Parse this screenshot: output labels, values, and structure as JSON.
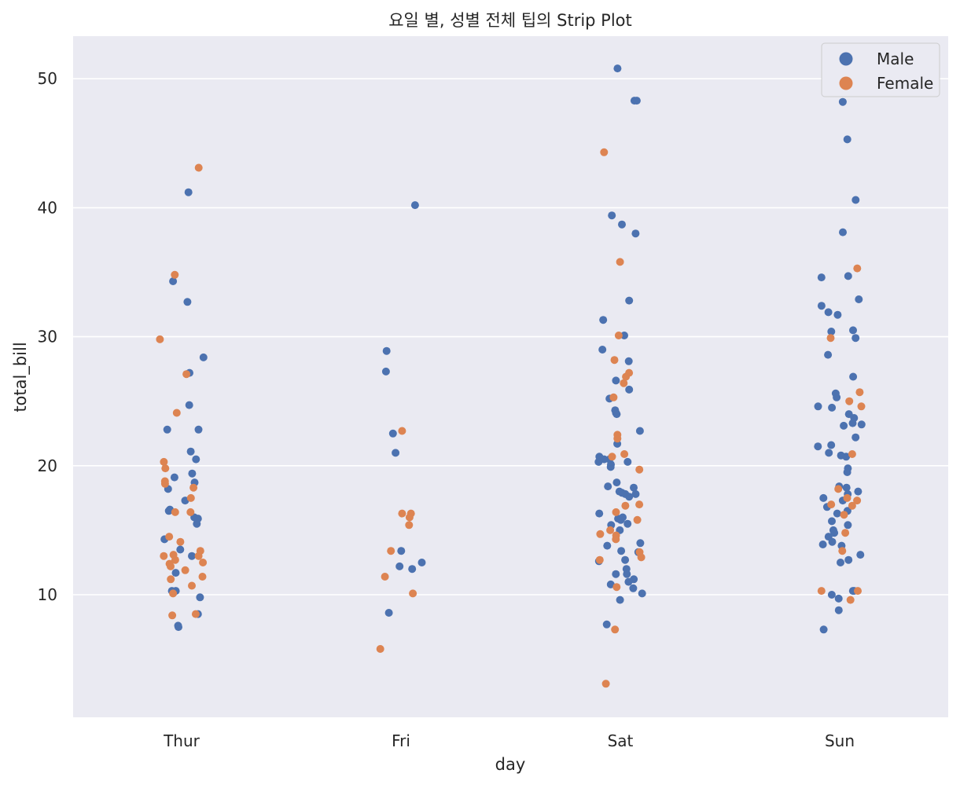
{
  "chart_data": {
    "type": "scatter",
    "title": "요일 별, 성별 전체 팁의 Strip Plot",
    "xlabel": "day",
    "ylabel": "total_bill",
    "categories": [
      "Thur",
      "Fri",
      "Sat",
      "Sun"
    ],
    "ylim": [
      0.5,
      53.3
    ],
    "yticks": [
      "10",
      "20",
      "30",
      "40",
      "50"
    ],
    "grid": true,
    "legend_position": "top-right",
    "colors": {
      "background": "#eaeaf2",
      "grid": "#ffffff",
      "male": "#4c72b0",
      "female": "#dd8452"
    },
    "series": [
      {
        "name": "Male",
        "points": [
          [
            "Thur",
            41.2
          ],
          [
            "Thur",
            34.3
          ],
          [
            "Thur",
            32.7
          ],
          [
            "Thur",
            28.4
          ],
          [
            "Thur",
            27.2
          ],
          [
            "Thur",
            24.7
          ],
          [
            "Thur",
            22.8
          ],
          [
            "Thur",
            22.8
          ],
          [
            "Thur",
            21.1
          ],
          [
            "Thur",
            20.5
          ],
          [
            "Thur",
            19.4
          ],
          [
            "Thur",
            19.1
          ],
          [
            "Thur",
            18.7
          ],
          [
            "Thur",
            18.2
          ],
          [
            "Thur",
            17.3
          ],
          [
            "Thur",
            16.6
          ],
          [
            "Thur",
            16.5
          ],
          [
            "Thur",
            16.0
          ],
          [
            "Thur",
            15.9
          ],
          [
            "Thur",
            15.5
          ],
          [
            "Thur",
            14.3
          ],
          [
            "Thur",
            13.5
          ],
          [
            "Thur",
            13.0
          ],
          [
            "Thur",
            11.7
          ],
          [
            "Thur",
            10.3
          ],
          [
            "Thur",
            10.3
          ],
          [
            "Thur",
            9.8
          ],
          [
            "Thur",
            8.5
          ],
          [
            "Thur",
            7.6
          ],
          [
            "Thur",
            7.5
          ],
          [
            "Fri",
            40.2
          ],
          [
            "Fri",
            28.9
          ],
          [
            "Fri",
            27.3
          ],
          [
            "Fri",
            22.5
          ],
          [
            "Fri",
            21.0
          ],
          [
            "Fri",
            13.4
          ],
          [
            "Fri",
            12.5
          ],
          [
            "Fri",
            12.2
          ],
          [
            "Fri",
            12.0
          ],
          [
            "Fri",
            8.6
          ],
          [
            "Sat",
            50.8
          ],
          [
            "Sat",
            48.3
          ],
          [
            "Sat",
            48.3
          ],
          [
            "Sat",
            39.4
          ],
          [
            "Sat",
            38.7
          ],
          [
            "Sat",
            38.0
          ],
          [
            "Sat",
            32.8
          ],
          [
            "Sat",
            31.3
          ],
          [
            "Sat",
            30.1
          ],
          [
            "Sat",
            29.0
          ],
          [
            "Sat",
            28.1
          ],
          [
            "Sat",
            26.6
          ],
          [
            "Sat",
            25.9
          ],
          [
            "Sat",
            25.2
          ],
          [
            "Sat",
            24.3
          ],
          [
            "Sat",
            24.1
          ],
          [
            "Sat",
            24.0
          ],
          [
            "Sat",
            22.7
          ],
          [
            "Sat",
            21.7
          ],
          [
            "Sat",
            20.7
          ],
          [
            "Sat",
            20.5
          ],
          [
            "Sat",
            20.5
          ],
          [
            "Sat",
            20.3
          ],
          [
            "Sat",
            20.3
          ],
          [
            "Sat",
            20.1
          ],
          [
            "Sat",
            19.9
          ],
          [
            "Sat",
            18.7
          ],
          [
            "Sat",
            18.4
          ],
          [
            "Sat",
            18.3
          ],
          [
            "Sat",
            18.0
          ],
          [
            "Sat",
            17.9
          ],
          [
            "Sat",
            17.8
          ],
          [
            "Sat",
            17.8
          ],
          [
            "Sat",
            17.6
          ],
          [
            "Sat",
            16.3
          ],
          [
            "Sat",
            16.0
          ],
          [
            "Sat",
            15.9
          ],
          [
            "Sat",
            15.8
          ],
          [
            "Sat",
            15.5
          ],
          [
            "Sat",
            15.4
          ],
          [
            "Sat",
            15.0
          ],
          [
            "Sat",
            14.0
          ],
          [
            "Sat",
            13.8
          ],
          [
            "Sat",
            13.4
          ],
          [
            "Sat",
            13.3
          ],
          [
            "Sat",
            12.7
          ],
          [
            "Sat",
            12.6
          ],
          [
            "Sat",
            12.0
          ],
          [
            "Sat",
            11.6
          ],
          [
            "Sat",
            11.6
          ],
          [
            "Sat",
            11.2
          ],
          [
            "Sat",
            11.0
          ],
          [
            "Sat",
            10.8
          ],
          [
            "Sat",
            10.5
          ],
          [
            "Sat",
            10.1
          ],
          [
            "Sat",
            9.6
          ],
          [
            "Sat",
            7.7
          ],
          [
            "Sun",
            48.2
          ],
          [
            "Sun",
            45.3
          ],
          [
            "Sun",
            40.6
          ],
          [
            "Sun",
            38.1
          ],
          [
            "Sun",
            34.7
          ],
          [
            "Sun",
            34.6
          ],
          [
            "Sun",
            32.9
          ],
          [
            "Sun",
            32.4
          ],
          [
            "Sun",
            31.9
          ],
          [
            "Sun",
            31.7
          ],
          [
            "Sun",
            30.5
          ],
          [
            "Sun",
            30.4
          ],
          [
            "Sun",
            29.9
          ],
          [
            "Sun",
            28.6
          ],
          [
            "Sun",
            26.9
          ],
          [
            "Sun",
            25.6
          ],
          [
            "Sun",
            25.3
          ],
          [
            "Sun",
            24.6
          ],
          [
            "Sun",
            24.5
          ],
          [
            "Sun",
            24.0
          ],
          [
            "Sun",
            23.7
          ],
          [
            "Sun",
            23.3
          ],
          [
            "Sun",
            23.2
          ],
          [
            "Sun",
            23.1
          ],
          [
            "Sun",
            22.2
          ],
          [
            "Sun",
            21.6
          ],
          [
            "Sun",
            21.5
          ],
          [
            "Sun",
            21.0
          ],
          [
            "Sun",
            20.8
          ],
          [
            "Sun",
            20.7
          ],
          [
            "Sun",
            19.8
          ],
          [
            "Sun",
            19.5
          ],
          [
            "Sun",
            18.4
          ],
          [
            "Sun",
            18.3
          ],
          [
            "Sun",
            18.0
          ],
          [
            "Sun",
            17.8
          ],
          [
            "Sun",
            17.5
          ],
          [
            "Sun",
            17.3
          ],
          [
            "Sun",
            16.8
          ],
          [
            "Sun",
            16.5
          ],
          [
            "Sun",
            16.3
          ],
          [
            "Sun",
            15.7
          ],
          [
            "Sun",
            15.4
          ],
          [
            "Sun",
            15.0
          ],
          [
            "Sun",
            14.8
          ],
          [
            "Sun",
            14.5
          ],
          [
            "Sun",
            14.1
          ],
          [
            "Sun",
            13.9
          ],
          [
            "Sun",
            13.8
          ],
          [
            "Sun",
            13.1
          ],
          [
            "Sun",
            12.7
          ],
          [
            "Sun",
            12.5
          ],
          [
            "Sun",
            10.3
          ],
          [
            "Sun",
            10.3
          ],
          [
            "Sun",
            10.0
          ],
          [
            "Sun",
            9.7
          ],
          [
            "Sun",
            8.8
          ],
          [
            "Sun",
            7.3
          ]
        ]
      },
      {
        "name": "Female",
        "points": [
          [
            "Thur",
            43.1
          ],
          [
            "Thur",
            34.8
          ],
          [
            "Thur",
            29.8
          ],
          [
            "Thur",
            27.1
          ],
          [
            "Thur",
            24.1
          ],
          [
            "Thur",
            20.3
          ],
          [
            "Thur",
            19.8
          ],
          [
            "Thur",
            18.8
          ],
          [
            "Thur",
            18.6
          ],
          [
            "Thur",
            18.3
          ],
          [
            "Thur",
            17.5
          ],
          [
            "Thur",
            16.4
          ],
          [
            "Thur",
            16.4
          ],
          [
            "Thur",
            14.5
          ],
          [
            "Thur",
            14.1
          ],
          [
            "Thur",
            13.4
          ],
          [
            "Thur",
            13.1
          ],
          [
            "Thur",
            13.0
          ],
          [
            "Thur",
            13.0
          ],
          [
            "Thur",
            12.7
          ],
          [
            "Thur",
            12.5
          ],
          [
            "Thur",
            12.4
          ],
          [
            "Thur",
            12.2
          ],
          [
            "Thur",
            11.9
          ],
          [
            "Thur",
            11.4
          ],
          [
            "Thur",
            11.2
          ],
          [
            "Thur",
            10.7
          ],
          [
            "Thur",
            10.1
          ],
          [
            "Thur",
            8.5
          ],
          [
            "Thur",
            8.4
          ],
          [
            "Fri",
            22.7
          ],
          [
            "Fri",
            16.3
          ],
          [
            "Fri",
            16.3
          ],
          [
            "Fri",
            16.0
          ],
          [
            "Fri",
            15.4
          ],
          [
            "Fri",
            13.4
          ],
          [
            "Fri",
            11.4
          ],
          [
            "Fri",
            10.1
          ],
          [
            "Fri",
            5.8
          ],
          [
            "Sat",
            44.3
          ],
          [
            "Sat",
            35.8
          ],
          [
            "Sat",
            30.1
          ],
          [
            "Sat",
            28.2
          ],
          [
            "Sat",
            27.2
          ],
          [
            "Sat",
            26.9
          ],
          [
            "Sat",
            26.4
          ],
          [
            "Sat",
            25.3
          ],
          [
            "Sat",
            22.4
          ],
          [
            "Sat",
            22.1
          ],
          [
            "Sat",
            20.9
          ],
          [
            "Sat",
            20.7
          ],
          [
            "Sat",
            19.7
          ],
          [
            "Sat",
            17.0
          ],
          [
            "Sat",
            16.9
          ],
          [
            "Sat",
            16.4
          ],
          [
            "Sat",
            15.8
          ],
          [
            "Sat",
            15.0
          ],
          [
            "Sat",
            14.7
          ],
          [
            "Sat",
            14.6
          ],
          [
            "Sat",
            14.3
          ],
          [
            "Sat",
            13.3
          ],
          [
            "Sat",
            12.9
          ],
          [
            "Sat",
            12.7
          ],
          [
            "Sat",
            10.6
          ],
          [
            "Sat",
            7.3
          ],
          [
            "Sat",
            3.1
          ],
          [
            "Sun",
            35.3
          ],
          [
            "Sun",
            29.9
          ],
          [
            "Sun",
            25.7
          ],
          [
            "Sun",
            25.0
          ],
          [
            "Sun",
            24.6
          ],
          [
            "Sun",
            20.9
          ],
          [
            "Sun",
            18.2
          ],
          [
            "Sun",
            17.5
          ],
          [
            "Sun",
            17.3
          ],
          [
            "Sun",
            17.0
          ],
          [
            "Sun",
            16.9
          ],
          [
            "Sun",
            16.2
          ],
          [
            "Sun",
            14.8
          ],
          [
            "Sun",
            13.4
          ],
          [
            "Sun",
            10.3
          ],
          [
            "Sun",
            10.3
          ],
          [
            "Sun",
            9.6
          ]
        ]
      }
    ]
  }
}
